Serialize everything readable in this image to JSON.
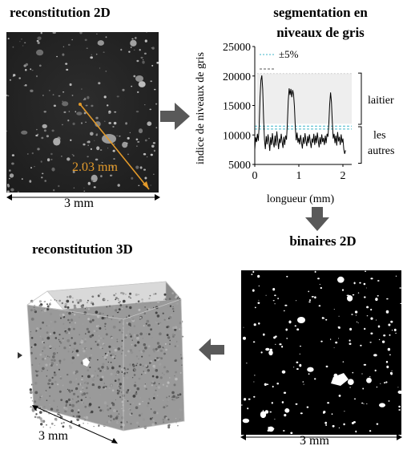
{
  "titles": {
    "recon2d": "reconstitution 2D",
    "segmentation_line1": "segmentation en",
    "segmentation_line2": "niveaux de gris",
    "binaires": "binaires 2D",
    "recon3d": "reconstitution 3D"
  },
  "recon2d": {
    "measure_label": "2.03 mm",
    "scale_label": "3 mm",
    "measure_color": "#e39a2a"
  },
  "binaires": {
    "scale_label": "3 mm"
  },
  "recon3d": {
    "scale_label": "3 mm"
  },
  "chart_data": {
    "type": "line",
    "ylabel": "indice de niveaux de gris",
    "xlabel": "longueur (mm)",
    "x_ticks": [
      "0",
      "1",
      "2"
    ],
    "y_ticks": [
      "5000",
      "10000",
      "15000",
      "20000",
      "25000"
    ],
    "xlim": [
      0,
      2.2
    ],
    "ylim": [
      5000,
      25000
    ],
    "legend_tolerance": "±5%",
    "annotations": {
      "laitier": "laitier",
      "autres_line1": "les",
      "autres_line2": "autres"
    },
    "threshold_band": [
      11000,
      11500
    ],
    "laitier_band": [
      11900,
      20400
    ],
    "series": [
      {
        "points": [
          [
            0.0,
            7500
          ],
          [
            0.02,
            9600
          ],
          [
            0.04,
            8800
          ],
          [
            0.06,
            10200
          ],
          [
            0.08,
            9000
          ],
          [
            0.1,
            11600
          ],
          [
            0.12,
            16500
          ],
          [
            0.14,
            19300
          ],
          [
            0.16,
            20100
          ],
          [
            0.18,
            17800
          ],
          [
            0.2,
            12800
          ],
          [
            0.22,
            9200
          ],
          [
            0.24,
            7600
          ],
          [
            0.26,
            9800
          ],
          [
            0.28,
            8400
          ],
          [
            0.3,
            10100
          ],
          [
            0.32,
            9000
          ],
          [
            0.34,
            7300
          ],
          [
            0.36,
            9600
          ],
          [
            0.38,
            8300
          ],
          [
            0.4,
            10300
          ],
          [
            0.42,
            8700
          ],
          [
            0.44,
            7900
          ],
          [
            0.46,
            9900
          ],
          [
            0.48,
            8200
          ],
          [
            0.5,
            10600
          ],
          [
            0.52,
            9100
          ],
          [
            0.54,
            7600
          ],
          [
            0.56,
            9400
          ],
          [
            0.58,
            8600
          ],
          [
            0.6,
            10200
          ],
          [
            0.62,
            8900
          ],
          [
            0.64,
            7800
          ],
          [
            0.66,
            9700
          ],
          [
            0.68,
            8300
          ],
          [
            0.7,
            9900
          ],
          [
            0.72,
            9200
          ],
          [
            0.74,
            12000
          ],
          [
            0.76,
            15800
          ],
          [
            0.78,
            17900
          ],
          [
            0.8,
            16800
          ],
          [
            0.82,
            17800
          ],
          [
            0.84,
            16400
          ],
          [
            0.86,
            17600
          ],
          [
            0.88,
            16900
          ],
          [
            0.9,
            14800
          ],
          [
            0.92,
            11300
          ],
          [
            0.94,
            9100
          ],
          [
            0.96,
            10400
          ],
          [
            0.98,
            8700
          ],
          [
            1.0,
            9500
          ],
          [
            1.02,
            8400
          ],
          [
            1.04,
            10000
          ],
          [
            1.06,
            8800
          ],
          [
            1.08,
            7700
          ],
          [
            1.1,
            9600
          ],
          [
            1.12,
            8500
          ],
          [
            1.14,
            10300
          ],
          [
            1.16,
            9000
          ],
          [
            1.18,
            8100
          ],
          [
            1.2,
            9800
          ],
          [
            1.22,
            8600
          ],
          [
            1.24,
            10100
          ],
          [
            1.26,
            8900
          ],
          [
            1.28,
            7800
          ],
          [
            1.3,
            9400
          ],
          [
            1.32,
            8700
          ],
          [
            1.34,
            10200
          ],
          [
            1.36,
            8300
          ],
          [
            1.38,
            9900
          ],
          [
            1.4,
            8600
          ],
          [
            1.42,
            10400
          ],
          [
            1.44,
            9100
          ],
          [
            1.46,
            7900
          ],
          [
            1.48,
            9600
          ],
          [
            1.5,
            8400
          ],
          [
            1.52,
            10100
          ],
          [
            1.54,
            8800
          ],
          [
            1.56,
            9500
          ],
          [
            1.58,
            8300
          ],
          [
            1.6,
            9900
          ],
          [
            1.62,
            8600
          ],
          [
            1.64,
            10200
          ],
          [
            1.66,
            9700
          ],
          [
            1.68,
            11800
          ],
          [
            1.7,
            15200
          ],
          [
            1.72,
            17200
          ],
          [
            1.74,
            15600
          ],
          [
            1.76,
            12100
          ],
          [
            1.78,
            9400
          ],
          [
            1.8,
            10200
          ],
          [
            1.82,
            8600
          ],
          [
            1.84,
            9900
          ],
          [
            1.86,
            8200
          ],
          [
            1.88,
            10500
          ],
          [
            1.9,
            8900
          ],
          [
            1.92,
            9700
          ],
          [
            1.94,
            8300
          ],
          [
            1.96,
            10100
          ],
          [
            1.98,
            8700
          ],
          [
            2.0,
            9400
          ],
          [
            2.02,
            7600
          ],
          [
            2.04,
            6800
          ],
          [
            2.06,
            7400
          ]
        ]
      }
    ]
  }
}
